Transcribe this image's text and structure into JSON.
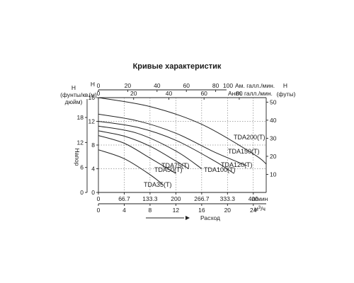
{
  "chart_data": {
    "type": "line",
    "title": "Кривые характеристик",
    "series": [
      {
        "name": "TDA200(T)",
        "x": [
          0,
          133.3,
          266.7,
          400,
          433.3
        ],
        "y": [
          16,
          14.5,
          11.5,
          6.5,
          4.8
        ]
      },
      {
        "name": "TDA150(T)",
        "x": [
          0,
          100,
          200,
          300,
          383.3
        ],
        "y": [
          13.2,
          12.1,
          10,
          6.8,
          4.5
        ]
      },
      {
        "name": "TDA120(T)",
        "x": [
          0,
          100,
          200,
          300,
          350
        ],
        "y": [
          12,
          11,
          8.8,
          5.3,
          3.2
        ]
      },
      {
        "name": "TDA100(T)",
        "x": [
          0,
          100,
          200,
          266.7
        ],
        "y": [
          11.2,
          10,
          7,
          4
        ]
      },
      {
        "name": "TDA75(T)",
        "x": [
          0,
          66.7,
          133.3,
          200,
          233.3
        ],
        "y": [
          10.4,
          9.5,
          7.8,
          5.3,
          4
        ]
      },
      {
        "name": "TDA50(T)",
        "x": [
          0,
          66.7,
          133.3,
          200
        ],
        "y": [
          9.6,
          8.3,
          5.8,
          3.2
        ]
      },
      {
        "name": "TDA35(T)",
        "x": [
          0,
          66.7,
          133.3,
          166.7
        ],
        "y": [
          7.2,
          5.7,
          3,
          1.3
        ]
      }
    ],
    "y_left_meters": {
      "label": "Напор",
      "unit": "(м)",
      "ticks": [
        "0",
        "4",
        "8",
        "12",
        "16"
      ],
      "range": [
        0,
        16
      ]
    },
    "y_left_psi": {
      "label": "H",
      "unit": "(фунты/кв. дюйм)",
      "ticks": [
        "0",
        "6",
        "12",
        "18"
      ]
    },
    "y_right_feet": {
      "label": "H",
      "unit": "(футы)",
      "ticks": [
        "10",
        "20",
        "30",
        "40",
        "50"
      ]
    },
    "x_lpm": {
      "unit": "л/мин",
      "ticks": [
        "0",
        "66.7",
        "133.3",
        "200",
        "266.7",
        "333.3",
        "400"
      ],
      "range": [
        0,
        433.3
      ]
    },
    "x_m3h": {
      "unit": "м",
      "unit_sup": "3",
      "unit_tail": "/ч",
      "ticks": [
        "0",
        "4",
        "8",
        "12",
        "16",
        "20",
        "24"
      ]
    },
    "x_us_gpm": {
      "prefix": "100",
      "unit": "Ам. галл./мин.",
      "ticks": [
        "0",
        "20",
        "40",
        "60",
        "80"
      ]
    },
    "x_imp_gpm": {
      "unit": "Англ. галл./мин.",
      "ticks": [
        "0",
        "20",
        "40",
        "60",
        "80"
      ]
    },
    "flow_label": "Расход",
    "header_left_h": "H",
    "header_left_unit": "(м)",
    "grid": true
  }
}
